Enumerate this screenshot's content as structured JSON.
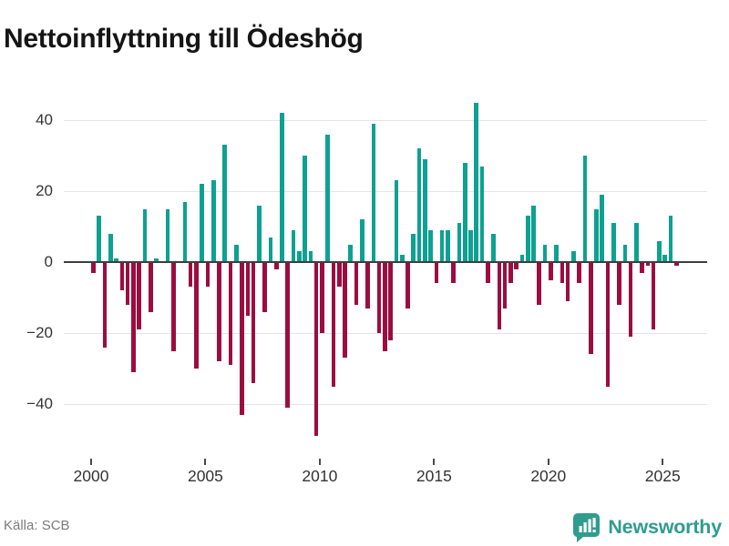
{
  "title": "Nettoinflyttning till Ödeshög",
  "source": "Källa: SCB",
  "brand": {
    "name": "Newsworthy"
  },
  "chart_data": {
    "type": "bar",
    "title": "Nettoinflyttning till Ödeshög",
    "xlabel": "",
    "ylabel": "",
    "legend": null,
    "grid": true,
    "period": "quarterly",
    "x_range": [
      "2000 Q1",
      "2025 Q3"
    ],
    "x_tick_years": [
      2000,
      2005,
      2010,
      2015,
      2020,
      2025
    ],
    "y_ticks": [
      40,
      20,
      0,
      -20,
      -40
    ],
    "ylim": [
      -52,
      48
    ],
    "positive_color": "#0da192",
    "negative_color": "#9c0d3f",
    "x": [
      "2000 Q1",
      "2000 Q2",
      "2000 Q3",
      "2000 Q4",
      "2001 Q1",
      "2001 Q2",
      "2001 Q3",
      "2001 Q4",
      "2002 Q1",
      "2002 Q2",
      "2002 Q3",
      "2002 Q4",
      "2003 Q1",
      "2003 Q2",
      "2003 Q3",
      "2003 Q4",
      "2004 Q1",
      "2004 Q2",
      "2004 Q3",
      "2004 Q4",
      "2005 Q1",
      "2005 Q2",
      "2005 Q3",
      "2005 Q4",
      "2006 Q1",
      "2006 Q2",
      "2006 Q3",
      "2006 Q4",
      "2007 Q1",
      "2007 Q2",
      "2007 Q3",
      "2007 Q4",
      "2008 Q1",
      "2008 Q2",
      "2008 Q3",
      "2008 Q4",
      "2009 Q1",
      "2009 Q2",
      "2009 Q3",
      "2009 Q4",
      "2010 Q1",
      "2010 Q2",
      "2010 Q3",
      "2010 Q4",
      "2011 Q1",
      "2011 Q2",
      "2011 Q3",
      "2011 Q4",
      "2012 Q1",
      "2012 Q2",
      "2012 Q3",
      "2012 Q4",
      "2013 Q1",
      "2013 Q2",
      "2013 Q3",
      "2013 Q4",
      "2014 Q1",
      "2014 Q2",
      "2014 Q3",
      "2014 Q4",
      "2015 Q1",
      "2015 Q2",
      "2015 Q3",
      "2015 Q4",
      "2016 Q1",
      "2016 Q2",
      "2016 Q3",
      "2016 Q4",
      "2017 Q1",
      "2017 Q2",
      "2017 Q3",
      "2017 Q4",
      "2018 Q1",
      "2018 Q2",
      "2018 Q3",
      "2018 Q4",
      "2019 Q1",
      "2019 Q2",
      "2019 Q3",
      "2019 Q4",
      "2020 Q1",
      "2020 Q2",
      "2020 Q3",
      "2020 Q4",
      "2021 Q1",
      "2021 Q2",
      "2021 Q3",
      "2021 Q4",
      "2022 Q1",
      "2022 Q2",
      "2022 Q3",
      "2022 Q4",
      "2023 Q1",
      "2023 Q2",
      "2023 Q3",
      "2023 Q4",
      "2024 Q1",
      "2024 Q2",
      "2024 Q3",
      "2024 Q4",
      "2025 Q1",
      "2025 Q2",
      "2025 Q3"
    ],
    "values": [
      -3,
      13,
      -24,
      8,
      1,
      -8,
      -12,
      -31,
      -19,
      15,
      -14,
      1,
      0,
      15,
      -25,
      0,
      17,
      -7,
      -30,
      22,
      -7,
      23,
      -28,
      33,
      -29,
      5,
      -43,
      -15,
      -34,
      16,
      -14,
      7,
      -2,
      42,
      -41,
      9,
      3,
      30,
      3,
      -49,
      -20,
      36,
      -35,
      -7,
      -27,
      5,
      -12,
      12,
      -13,
      39,
      -20,
      -25,
      -22,
      23,
      2,
      -13,
      8,
      32,
      29,
      9,
      -6,
      9,
      9,
      -6,
      11,
      28,
      9,
      45,
      27,
      -6,
      8,
      -19,
      -13,
      -6,
      -2,
      2,
      13,
      16,
      -12,
      5,
      -5,
      5,
      -6,
      -11,
      3,
      -6,
      30,
      -26,
      15,
      19,
      -35,
      11,
      -12,
      5,
      -21,
      11,
      -3,
      -1,
      -19,
      6,
      2,
      13,
      -1
    ]
  }
}
